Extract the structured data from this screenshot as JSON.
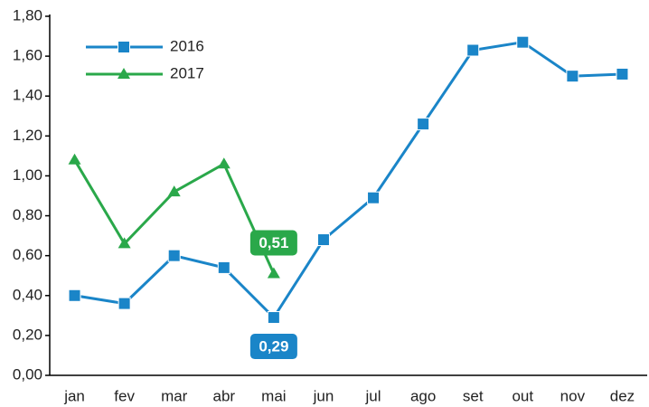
{
  "chart_data": {
    "type": "line",
    "categories": [
      "jan",
      "fev",
      "mar",
      "abr",
      "mai",
      "jun",
      "jul",
      "ago",
      "set",
      "out",
      "nov",
      "dez"
    ],
    "series": [
      {
        "name": "2016",
        "color": "#1a85c8",
        "marker": "square",
        "values": [
          0.4,
          0.36,
          0.6,
          0.54,
          0.29,
          0.68,
          0.89,
          1.26,
          1.63,
          1.67,
          1.5,
          1.51
        ],
        "value_labels": [
          null,
          null,
          null,
          null,
          "0,29",
          null,
          null,
          null,
          null,
          null,
          null,
          null
        ]
      },
      {
        "name": "2017",
        "color": "#2aa84a",
        "marker": "triangle",
        "values": [
          1.08,
          0.66,
          0.92,
          1.06,
          0.51,
          null,
          null,
          null,
          null,
          null,
          null,
          null
        ],
        "value_labels": [
          null,
          null,
          null,
          null,
          "0,51",
          null,
          null,
          null,
          null,
          null,
          null,
          null
        ]
      }
    ],
    "ylim": [
      0,
      1.8
    ],
    "yticks": [
      {
        "value": 0,
        "label": "0,00"
      },
      {
        "value": 0.2,
        "label": "0,20"
      },
      {
        "value": 0.4,
        "label": "0,40"
      },
      {
        "value": 0.6,
        "label": "0,60"
      },
      {
        "value": 0.8,
        "label": "0,80"
      },
      {
        "value": 1.0,
        "label": "1,00"
      },
      {
        "value": 1.2,
        "label": "1,20"
      },
      {
        "value": 1.4,
        "label": "1,40"
      },
      {
        "value": 1.6,
        "label": "1,60"
      },
      {
        "value": 1.8,
        "label": "1,80"
      }
    ],
    "legend": "upper left",
    "grid": false
  }
}
